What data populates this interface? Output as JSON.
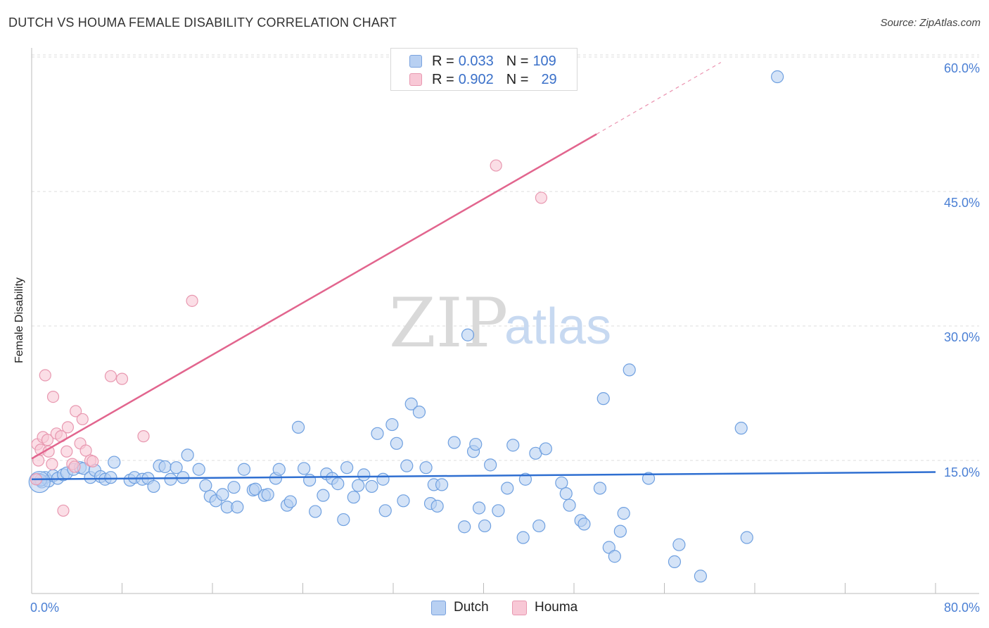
{
  "header": {
    "title": "DUTCH VS HOUMA FEMALE DISABILITY CORRELATION CHART",
    "source": "Source: ZipAtlas.com"
  },
  "watermark": {
    "zip": "ZIP",
    "atlas": "atlas"
  },
  "legend": {
    "rows": [
      {
        "r_label": "R =",
        "r_value": "0.033",
        "n_label": "N =",
        "n_value": "109",
        "color": "#b8d0f2"
      },
      {
        "r_label": "R =",
        "r_value": "0.902",
        "n_label": "N =",
        "n_value": "29",
        "color": "#f8c8d6"
      }
    ]
  },
  "bottom_legend": {
    "dutch": "Dutch",
    "houma": "Houma"
  },
  "chart_data": {
    "type": "scatter",
    "title": "DUTCH VS HOUMA FEMALE DISABILITY CORRELATION CHART",
    "xlabel": "",
    "ylabel": "Female Disability",
    "xlim": [
      0,
      80
    ],
    "ylim": [
      0,
      62
    ],
    "x_tick_labels": [
      "0.0%",
      "80.0%"
    ],
    "y_ticks": [
      15,
      30,
      45,
      60
    ],
    "y_tick_labels": [
      "15.0%",
      "30.0%",
      "45.0%",
      "60.0%"
    ],
    "grid": true,
    "legend_position": "top-center",
    "series": [
      {
        "name": "Dutch",
        "color": "#6fa0e0",
        "fill": "#b8d0f2",
        "trend": {
          "x0": 0,
          "y0": 12.9,
          "x1": 80,
          "y1": 13.7,
          "color": "#2f6fd1"
        },
        "points": [
          [
            0.6,
            12.9
          ],
          [
            0.9,
            12.6
          ],
          [
            1.2,
            13.1
          ],
          [
            1.5,
            12.7
          ],
          [
            1.9,
            13.3
          ],
          [
            2.3,
            13.0
          ],
          [
            2.8,
            13.4
          ],
          [
            3.1,
            13.6
          ],
          [
            3.7,
            14.0
          ],
          [
            4.3,
            14.2
          ],
          [
            4.6,
            14.1
          ],
          [
            5.2,
            13.1
          ],
          [
            5.6,
            13.9
          ],
          [
            6.1,
            13.2
          ],
          [
            6.5,
            12.9
          ],
          [
            7.0,
            13.1
          ],
          [
            7.3,
            14.8
          ],
          [
            8.7,
            12.8
          ],
          [
            9.1,
            13.1
          ],
          [
            9.8,
            12.9
          ],
          [
            10.3,
            13.0
          ],
          [
            10.8,
            12.1
          ],
          [
            11.3,
            14.4
          ],
          [
            11.8,
            14.3
          ],
          [
            12.3,
            12.9
          ],
          [
            12.8,
            14.2
          ],
          [
            13.4,
            13.1
          ],
          [
            13.8,
            15.6
          ],
          [
            14.8,
            14.0
          ],
          [
            15.4,
            12.2
          ],
          [
            15.8,
            11.0
          ],
          [
            16.3,
            10.5
          ],
          [
            16.9,
            11.2
          ],
          [
            17.3,
            9.8
          ],
          [
            17.9,
            12.0
          ],
          [
            18.2,
            9.8
          ],
          [
            18.8,
            14.0
          ],
          [
            19.6,
            11.7
          ],
          [
            19.8,
            11.8
          ],
          [
            20.6,
            11.1
          ],
          [
            20.9,
            11.2
          ],
          [
            21.6,
            13.0
          ],
          [
            21.9,
            14.0
          ],
          [
            22.6,
            10.0
          ],
          [
            22.9,
            10.4
          ],
          [
            23.6,
            18.7
          ],
          [
            24.1,
            14.1
          ],
          [
            24.6,
            12.8
          ],
          [
            25.1,
            9.3
          ],
          [
            25.8,
            11.1
          ],
          [
            26.1,
            13.5
          ],
          [
            26.6,
            13.0
          ],
          [
            27.1,
            12.4
          ],
          [
            27.6,
            8.4
          ],
          [
            27.9,
            14.2
          ],
          [
            28.5,
            10.9
          ],
          [
            28.9,
            12.2
          ],
          [
            29.4,
            13.4
          ],
          [
            30.1,
            12.1
          ],
          [
            30.6,
            18.0
          ],
          [
            31.1,
            12.9
          ],
          [
            31.3,
            9.4
          ],
          [
            31.9,
            19.0
          ],
          [
            32.3,
            16.9
          ],
          [
            32.9,
            10.5
          ],
          [
            33.2,
            14.4
          ],
          [
            33.6,
            21.3
          ],
          [
            34.3,
            20.4
          ],
          [
            34.9,
            14.2
          ],
          [
            35.3,
            10.2
          ],
          [
            35.6,
            12.3
          ],
          [
            35.9,
            9.9
          ],
          [
            36.3,
            12.3
          ],
          [
            37.4,
            17.0
          ],
          [
            38.3,
            7.6
          ],
          [
            38.6,
            29.0
          ],
          [
            39.1,
            16.0
          ],
          [
            39.3,
            16.8
          ],
          [
            39.6,
            9.7
          ],
          [
            40.1,
            7.7
          ],
          [
            40.6,
            14.5
          ],
          [
            41.3,
            9.4
          ],
          [
            42.1,
            11.9
          ],
          [
            42.6,
            16.7
          ],
          [
            43.5,
            6.4
          ],
          [
            43.7,
            12.9
          ],
          [
            44.6,
            15.8
          ],
          [
            44.9,
            7.7
          ],
          [
            45.5,
            16.3
          ],
          [
            46.9,
            12.5
          ],
          [
            47.3,
            11.3
          ],
          [
            47.6,
            10.0
          ],
          [
            48.6,
            8.3
          ],
          [
            48.9,
            7.9
          ],
          [
            50.3,
            11.9
          ],
          [
            50.6,
            21.9
          ],
          [
            51.1,
            5.3
          ],
          [
            51.6,
            4.3
          ],
          [
            52.1,
            7.1
          ],
          [
            52.4,
            9.1
          ],
          [
            52.9,
            25.1
          ],
          [
            54.6,
            13.0
          ],
          [
            56.9,
            3.7
          ],
          [
            57.3,
            5.6
          ],
          [
            59.2,
            2.1
          ],
          [
            62.8,
            18.6
          ],
          [
            63.3,
            6.4
          ],
          [
            66.0,
            57.8
          ],
          [
            0.8,
            12.8
          ]
        ]
      },
      {
        "name": "Houma",
        "color": "#e898b0",
        "fill": "#f8c8d6",
        "trend": {
          "x0": 0,
          "y0": 15.2,
          "x1": 50,
          "y1": 51.4,
          "dash_to_x": 61,
          "dash_to_y": 59.4,
          "color": "#e2658e"
        },
        "points": [
          [
            0.4,
            12.9
          ],
          [
            0.5,
            16.8
          ],
          [
            0.6,
            15.0
          ],
          [
            0.8,
            16.2
          ],
          [
            1.0,
            17.6
          ],
          [
            1.2,
            24.5
          ],
          [
            1.4,
            17.3
          ],
          [
            1.5,
            16.0
          ],
          [
            1.8,
            14.6
          ],
          [
            1.9,
            22.1
          ],
          [
            2.2,
            18.0
          ],
          [
            2.6,
            17.7
          ],
          [
            2.8,
            9.4
          ],
          [
            3.1,
            16.0
          ],
          [
            3.2,
            18.7
          ],
          [
            3.6,
            14.6
          ],
          [
            3.8,
            14.3
          ],
          [
            3.9,
            20.5
          ],
          [
            4.3,
            16.9
          ],
          [
            4.5,
            19.6
          ],
          [
            4.8,
            16.1
          ],
          [
            5.2,
            15.0
          ],
          [
            5.4,
            14.9
          ],
          [
            7.0,
            24.4
          ],
          [
            8.0,
            24.1
          ],
          [
            9.9,
            17.7
          ],
          [
            14.2,
            32.8
          ],
          [
            41.1,
            47.9
          ],
          [
            45.1,
            44.3
          ]
        ]
      }
    ]
  }
}
